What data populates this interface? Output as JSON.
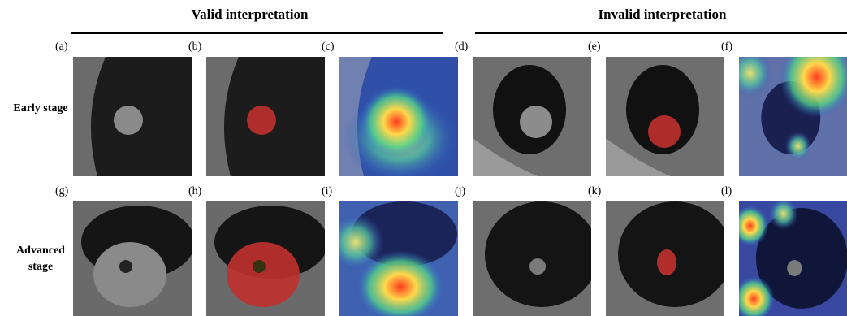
{
  "headers": [
    "Valid interpretation",
    "Invalid interpretation"
  ],
  "rows": [
    {
      "label": "Early stage",
      "panels": [
        "(a)",
        "(b)",
        "(c)",
        "(d)",
        "(e)",
        "(f)"
      ]
    },
    {
      "label": "Advanced stage",
      "panels": [
        "(g)",
        "(h)",
        "(i)",
        "(j)",
        "(k)",
        "(l)"
      ]
    }
  ]
}
